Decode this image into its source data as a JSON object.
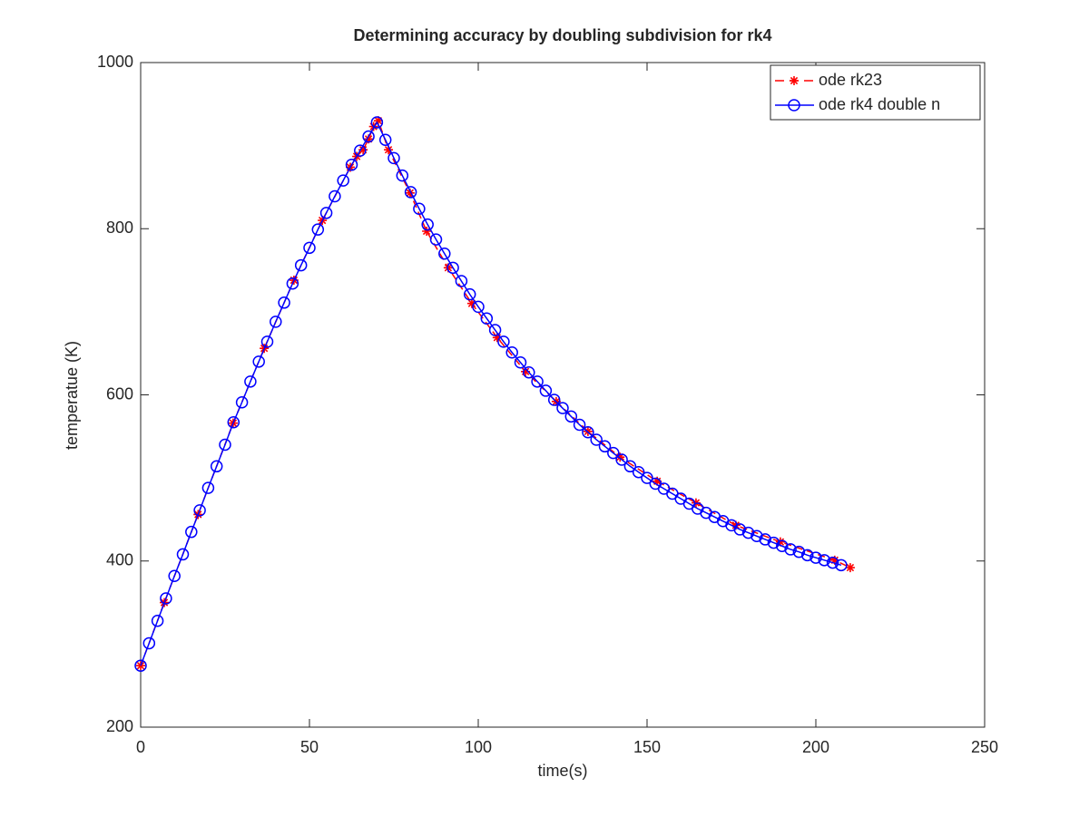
{
  "chart_data": {
    "type": "line",
    "title": "Determining accuracy by doubling subdivision for rk4",
    "x_label": "time(s)",
    "y_label": "temperatue (K)",
    "xlim": [
      0,
      250
    ],
    "xticks": [
      0,
      50,
      100,
      150,
      200,
      250
    ],
    "ylim": [
      200,
      1000
    ],
    "yticks": [
      200,
      400,
      600,
      800,
      1000
    ],
    "grid": false,
    "legend": "northeast",
    "series": [
      {
        "name": "ode rk23",
        "color": "#ff0000",
        "linestyle": "dashed",
        "marker": "star",
        "x": [
          0,
          7,
          17,
          27.4,
          36.6,
          45.4,
          53.8,
          62.1,
          64,
          65.9,
          67.5,
          69,
          70.4,
          73.4,
          79.8,
          84.7,
          91.1,
          98.1,
          105.6,
          114,
          123.1,
          132.5,
          142,
          153,
          164.5,
          176.3,
          189.5,
          205.6,
          210.2
        ],
        "values": [
          274,
          350,
          456,
          566,
          656,
          738,
          810,
          874,
          887,
          895,
          908,
          923,
          930,
          895,
          843,
          797,
          753,
          710,
          669,
          628,
          592,
          556,
          525,
          496,
          470,
          443,
          423,
          401,
          392
        ]
      },
      {
        "name": "ode rk4 double n",
        "color": "#0000ff",
        "linestyle": "solid",
        "marker": "circle",
        "x": [
          0,
          2.5,
          5,
          7.5,
          10,
          12.5,
          15,
          17.5,
          20,
          22.5,
          25,
          27.5,
          30,
          32.5,
          35,
          37.5,
          40,
          42.5,
          45,
          47.5,
          50,
          52.5,
          55,
          57.5,
          60,
          62.5,
          65,
          67.5,
          70,
          72.5,
          75,
          77.5,
          80,
          82.5,
          85,
          87.5,
          90,
          92.5,
          95,
          97.5,
          100,
          102.5,
          105,
          107.5,
          110,
          112.5,
          115,
          117.5,
          120,
          122.5,
          125,
          127.5,
          130,
          132.5,
          135,
          137.5,
          140,
          142.5,
          145,
          147.5,
          150,
          152.5,
          155,
          157.5,
          160,
          162.5,
          165,
          167.5,
          170,
          172.5,
          175,
          177.5,
          180,
          182.5,
          185,
          187.5,
          190,
          192.5,
          195,
          197.5,
          200,
          202.5,
          205,
          207.5
        ],
        "values": [
          274,
          301,
          328,
          355,
          382,
          408,
          435,
          461,
          488,
          514,
          540,
          567,
          591,
          616,
          640,
          664,
          688,
          711,
          734,
          756,
          777,
          799,
          819,
          839,
          858,
          877,
          894,
          911,
          928,
          907,
          885,
          864,
          844,
          824,
          805,
          787,
          770,
          753,
          737,
          721,
          706,
          692,
          678,
          664,
          651,
          639,
          627,
          616,
          605,
          594,
          584,
          574,
          564,
          555,
          546,
          538,
          530,
          522,
          514,
          507,
          500,
          493,
          487,
          481,
          475,
          469,
          463,
          458,
          453,
          448,
          443,
          438,
          434,
          430,
          426,
          422,
          418,
          414,
          411,
          407,
          404,
          401,
          398,
          395
        ]
      }
    ]
  }
}
